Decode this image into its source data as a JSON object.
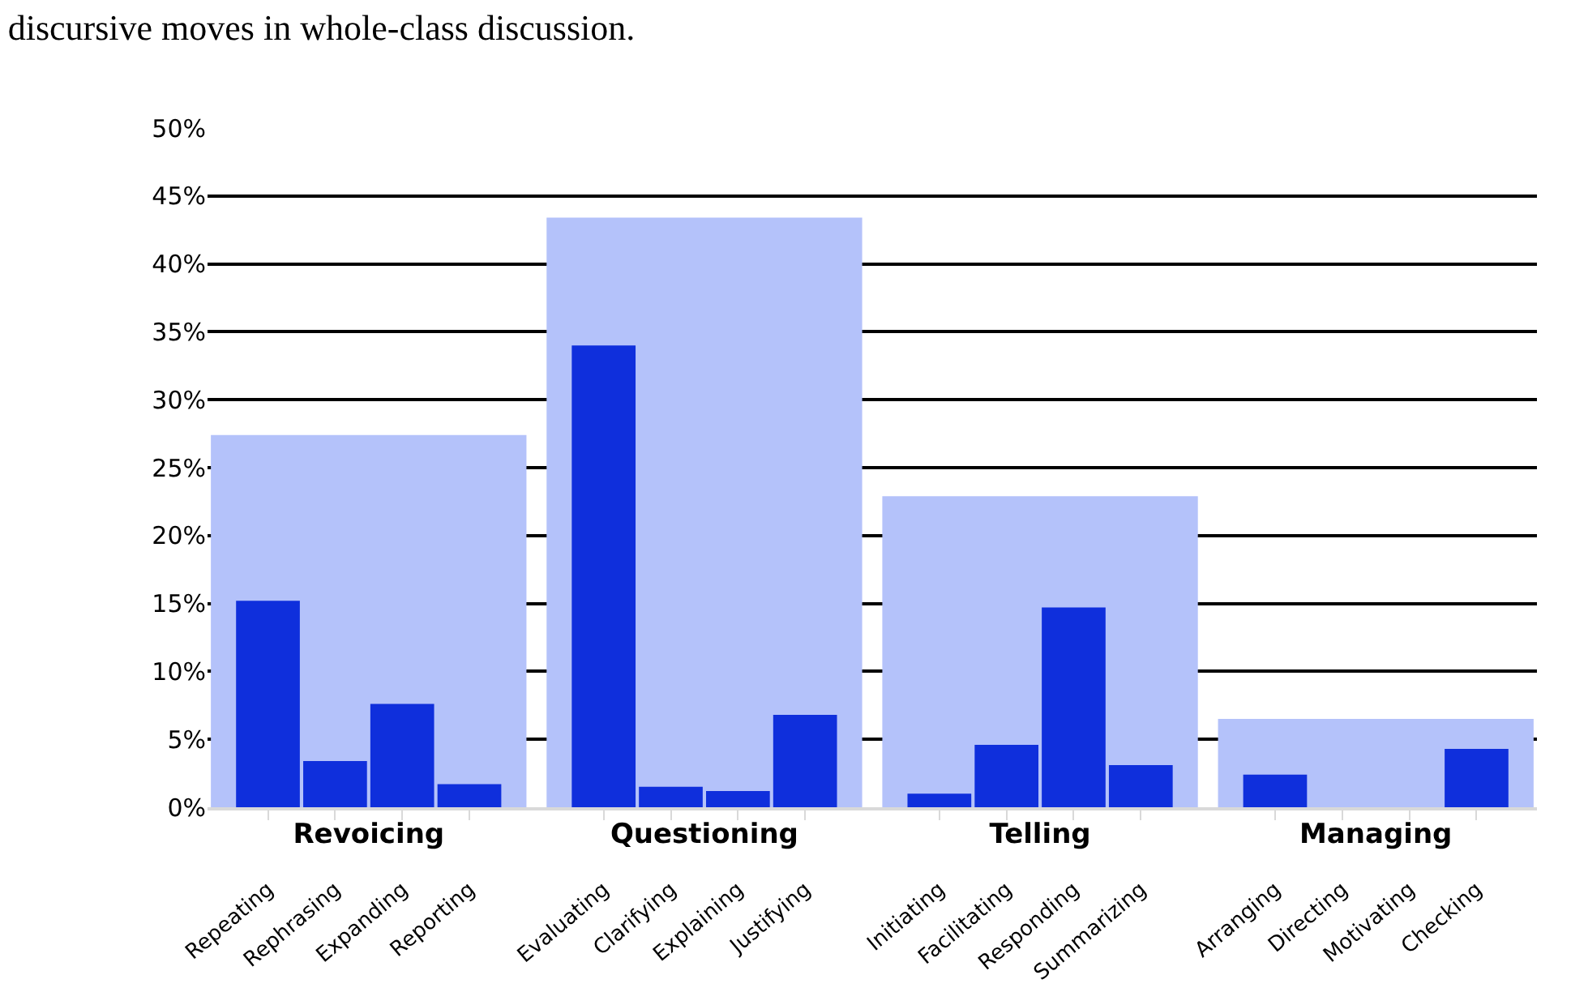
{
  "chart_data": [
    {
      "type": "bar",
      "title": "discursive moves in whole-class discussion.",
      "categories": [
        "Revoicing",
        "Questioning",
        "Telling",
        "Managing"
      ],
      "series": [
        {
          "color": "#b4c2fa",
          "values": [
            27.4,
            43.4,
            22.9,
            6.5
          ]
        }
      ],
      "ylim": [
        0,
        50
      ],
      "yticks": [
        {
          "value": 0,
          "label": "0%"
        },
        {
          "value": 5,
          "label": "5%"
        },
        {
          "value": 10,
          "label": "10%"
        },
        {
          "value": 15,
          "label": "15%"
        },
        {
          "value": 20,
          "label": "20%"
        },
        {
          "value": 25,
          "label": "25%"
        },
        {
          "value": 30,
          "label": "30%"
        },
        {
          "value": 35,
          "label": "35%"
        },
        {
          "value": 40,
          "label": "40%"
        },
        {
          "value": 45,
          "label": "45%"
        },
        {
          "value": 50,
          "label": "50%"
        }
      ],
      "grid": "y"
    },
    {
      "type": "bar",
      "categories": [
        "Repeating",
        "Rephrasing",
        "Expanding",
        "Reporting",
        "Evaluating",
        "Clarifying",
        "Explaining",
        "Justifying",
        "Initiating",
        "Facilitating",
        "Responding",
        "Summarizing",
        "Arranging",
        "Directing",
        "Motivating",
        "Checking"
      ],
      "series": [
        {
          "color": "#0f2fdc",
          "values": [
            15.2,
            3.4,
            7.6,
            1.7,
            34.0,
            1.5,
            1.2,
            6.8,
            1.0,
            4.6,
            14.7,
            3.1,
            2.4,
            0,
            0,
            4.3
          ]
        }
      ],
      "ylim": [
        0,
        50
      ],
      "tick_labels": "x"
    }
  ]
}
